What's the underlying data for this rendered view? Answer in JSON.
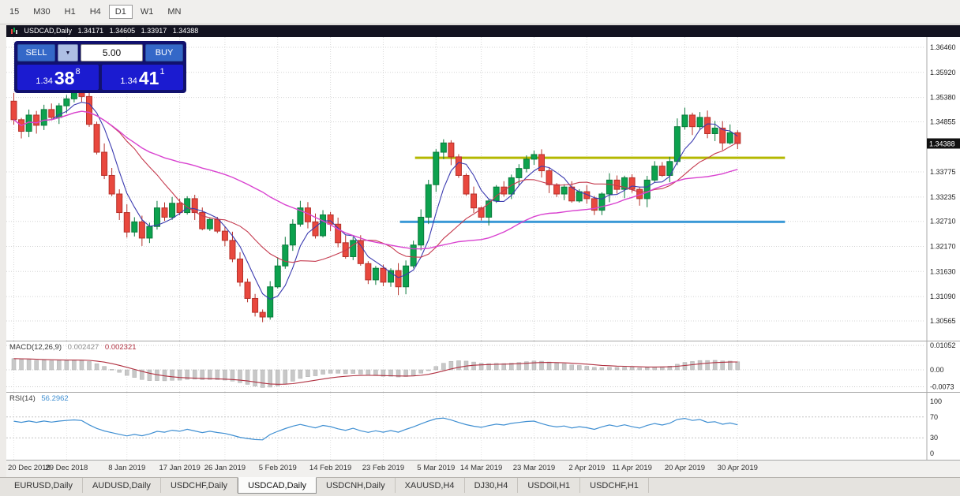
{
  "toolbar": {
    "timeframes": [
      {
        "label": "15",
        "active": false
      },
      {
        "label": "M30",
        "active": false
      },
      {
        "label": "H1",
        "active": false
      },
      {
        "label": "H4",
        "active": false
      },
      {
        "label": "D1",
        "active": true
      },
      {
        "label": "W1",
        "active": false
      },
      {
        "label": "MN",
        "active": false
      }
    ]
  },
  "chart_header": {
    "symbol": "USDCAD,Daily",
    "open": "1.34171",
    "high": "1.34605",
    "low": "1.33917",
    "close": "1.34388"
  },
  "trade_panel": {
    "sell_label": "SELL",
    "buy_label": "BUY",
    "volume": "5.00",
    "dropdown_arrow": "▼",
    "bid_big": "1.34",
    "bid_mid": "38",
    "bid_sup": "8",
    "ask_big": "1.34",
    "ask_mid": "41",
    "ask_sup": "1"
  },
  "chart_data": {
    "type": "candlestick",
    "symbol": "USDCAD",
    "timeframe": "Daily",
    "current_price": 1.34388,
    "first_open": 1.353,
    "closes": [
      1.349,
      1.3465,
      1.35,
      1.3478,
      1.3512,
      1.3495,
      1.352,
      1.3535,
      1.3548,
      1.354,
      1.348,
      1.342,
      1.337,
      1.333,
      1.329,
      1.3248,
      1.327,
      1.3235,
      1.326,
      1.33,
      1.328,
      1.331,
      1.329,
      1.332,
      1.329,
      1.3255,
      1.3275,
      1.325,
      1.323,
      1.319,
      1.314,
      1.3105,
      1.3075,
      1.3065,
      1.313,
      1.3175,
      1.322,
      1.3265,
      1.33,
      1.327,
      1.324,
      1.3285,
      1.3265,
      1.3225,
      1.3195,
      1.323,
      1.318,
      1.3145,
      1.317,
      1.314,
      1.3165,
      1.313,
      1.3175,
      1.322,
      1.328,
      1.335,
      1.342,
      1.344,
      1.341,
      1.337,
      1.333,
      1.33,
      1.328,
      1.3315,
      1.3345,
      1.333,
      1.3365,
      1.3385,
      1.3405,
      1.3415,
      1.338,
      1.335,
      1.333,
      1.3345,
      1.3315,
      1.3335,
      1.332,
      1.3295,
      1.333,
      1.336,
      1.334,
      1.3365,
      1.334,
      1.332,
      1.336,
      1.339,
      1.337,
      1.34,
      1.3475,
      1.35,
      1.3475,
      1.3495,
      1.346,
      1.3472,
      1.344,
      1.3462,
      1.34388
    ],
    "price_grid": [
      1.3646,
      1.3592,
      1.3538,
      1.34855,
      1.33775,
      1.33235,
      1.3271,
      1.3217,
      1.3163,
      1.3109,
      1.30565
    ],
    "date_ticks": [
      {
        "i": 0,
        "label": "20 Dec 2018"
      },
      {
        "i": 7,
        "label": "29 Dec 2018"
      },
      {
        "i": 15,
        "label": "8 Jan 2019"
      },
      {
        "i": 22,
        "label": "17 Jan 2019"
      },
      {
        "i": 28,
        "label": "26 Jan 2019"
      },
      {
        "i": 35,
        "label": "5 Feb 2019"
      },
      {
        "i": 42,
        "label": "14 Feb 2019"
      },
      {
        "i": 49,
        "label": "23 Feb 2019"
      },
      {
        "i": 56,
        "label": "5 Mar 2019"
      },
      {
        "i": 62,
        "label": "14 Mar 2019"
      },
      {
        "i": 69,
        "label": "23 Mar 2019"
      },
      {
        "i": 76,
        "label": "2 Apr 2019"
      },
      {
        "i": 82,
        "label": "11 Apr 2019"
      },
      {
        "i": 89,
        "label": "20 Apr 2019"
      },
      {
        "i": 96,
        "label": "30 Apr 2019"
      }
    ],
    "moving_averages": [
      {
        "name": "fast",
        "period": 5,
        "color": "#3b3bb0"
      },
      {
        "name": "medium",
        "period": 13,
        "color": "#c53a4e"
      },
      {
        "name": "slow",
        "period": 34,
        "color": "#d943d0"
      }
    ],
    "levels": [
      {
        "name": "resistance-line",
        "price": 1.3408,
        "color": "#b4b800",
        "from_index": 54
      },
      {
        "name": "support-line",
        "price": 1.327,
        "color": "#3a99d6",
        "from_index": 52
      }
    ],
    "candle_up_color": "#0ca24e",
    "candle_down_color": "#e9483e"
  },
  "macd_panel": {
    "label": "MACD(12,26,9)",
    "value": "0.002427",
    "signal": "0.002321",
    "scale": [
      {
        "label": "0.01052",
        "value": 0.01052
      },
      {
        "label": "0.00",
        "value": 0
      },
      {
        "label": "-0.0073",
        "value": -0.0073
      }
    ]
  },
  "rsi_panel": {
    "label": "RSI(14)",
    "value": "56.2962",
    "scale": [
      {
        "label": "100",
        "value": 100,
        "line": false
      },
      {
        "label": "70",
        "value": 70,
        "line": true
      },
      {
        "label": "30",
        "value": 30,
        "line": true
      },
      {
        "label": "0",
        "value": 0,
        "line": false
      }
    ]
  },
  "tabs": [
    {
      "label": "EURUSD,Daily",
      "active": false
    },
    {
      "label": "AUDUSD,Daily",
      "active": false
    },
    {
      "label": "USDCHF,Daily",
      "active": false
    },
    {
      "label": "USDCAD,Daily",
      "active": true
    },
    {
      "label": "USDCNH,Daily",
      "active": false
    },
    {
      "label": "XAUUSD,H4",
      "active": false
    },
    {
      "label": "DJ30,H4",
      "active": false
    },
    {
      "label": "USDOil,H1",
      "active": false
    },
    {
      "label": "USDCHF,H1",
      "active": false
    }
  ]
}
